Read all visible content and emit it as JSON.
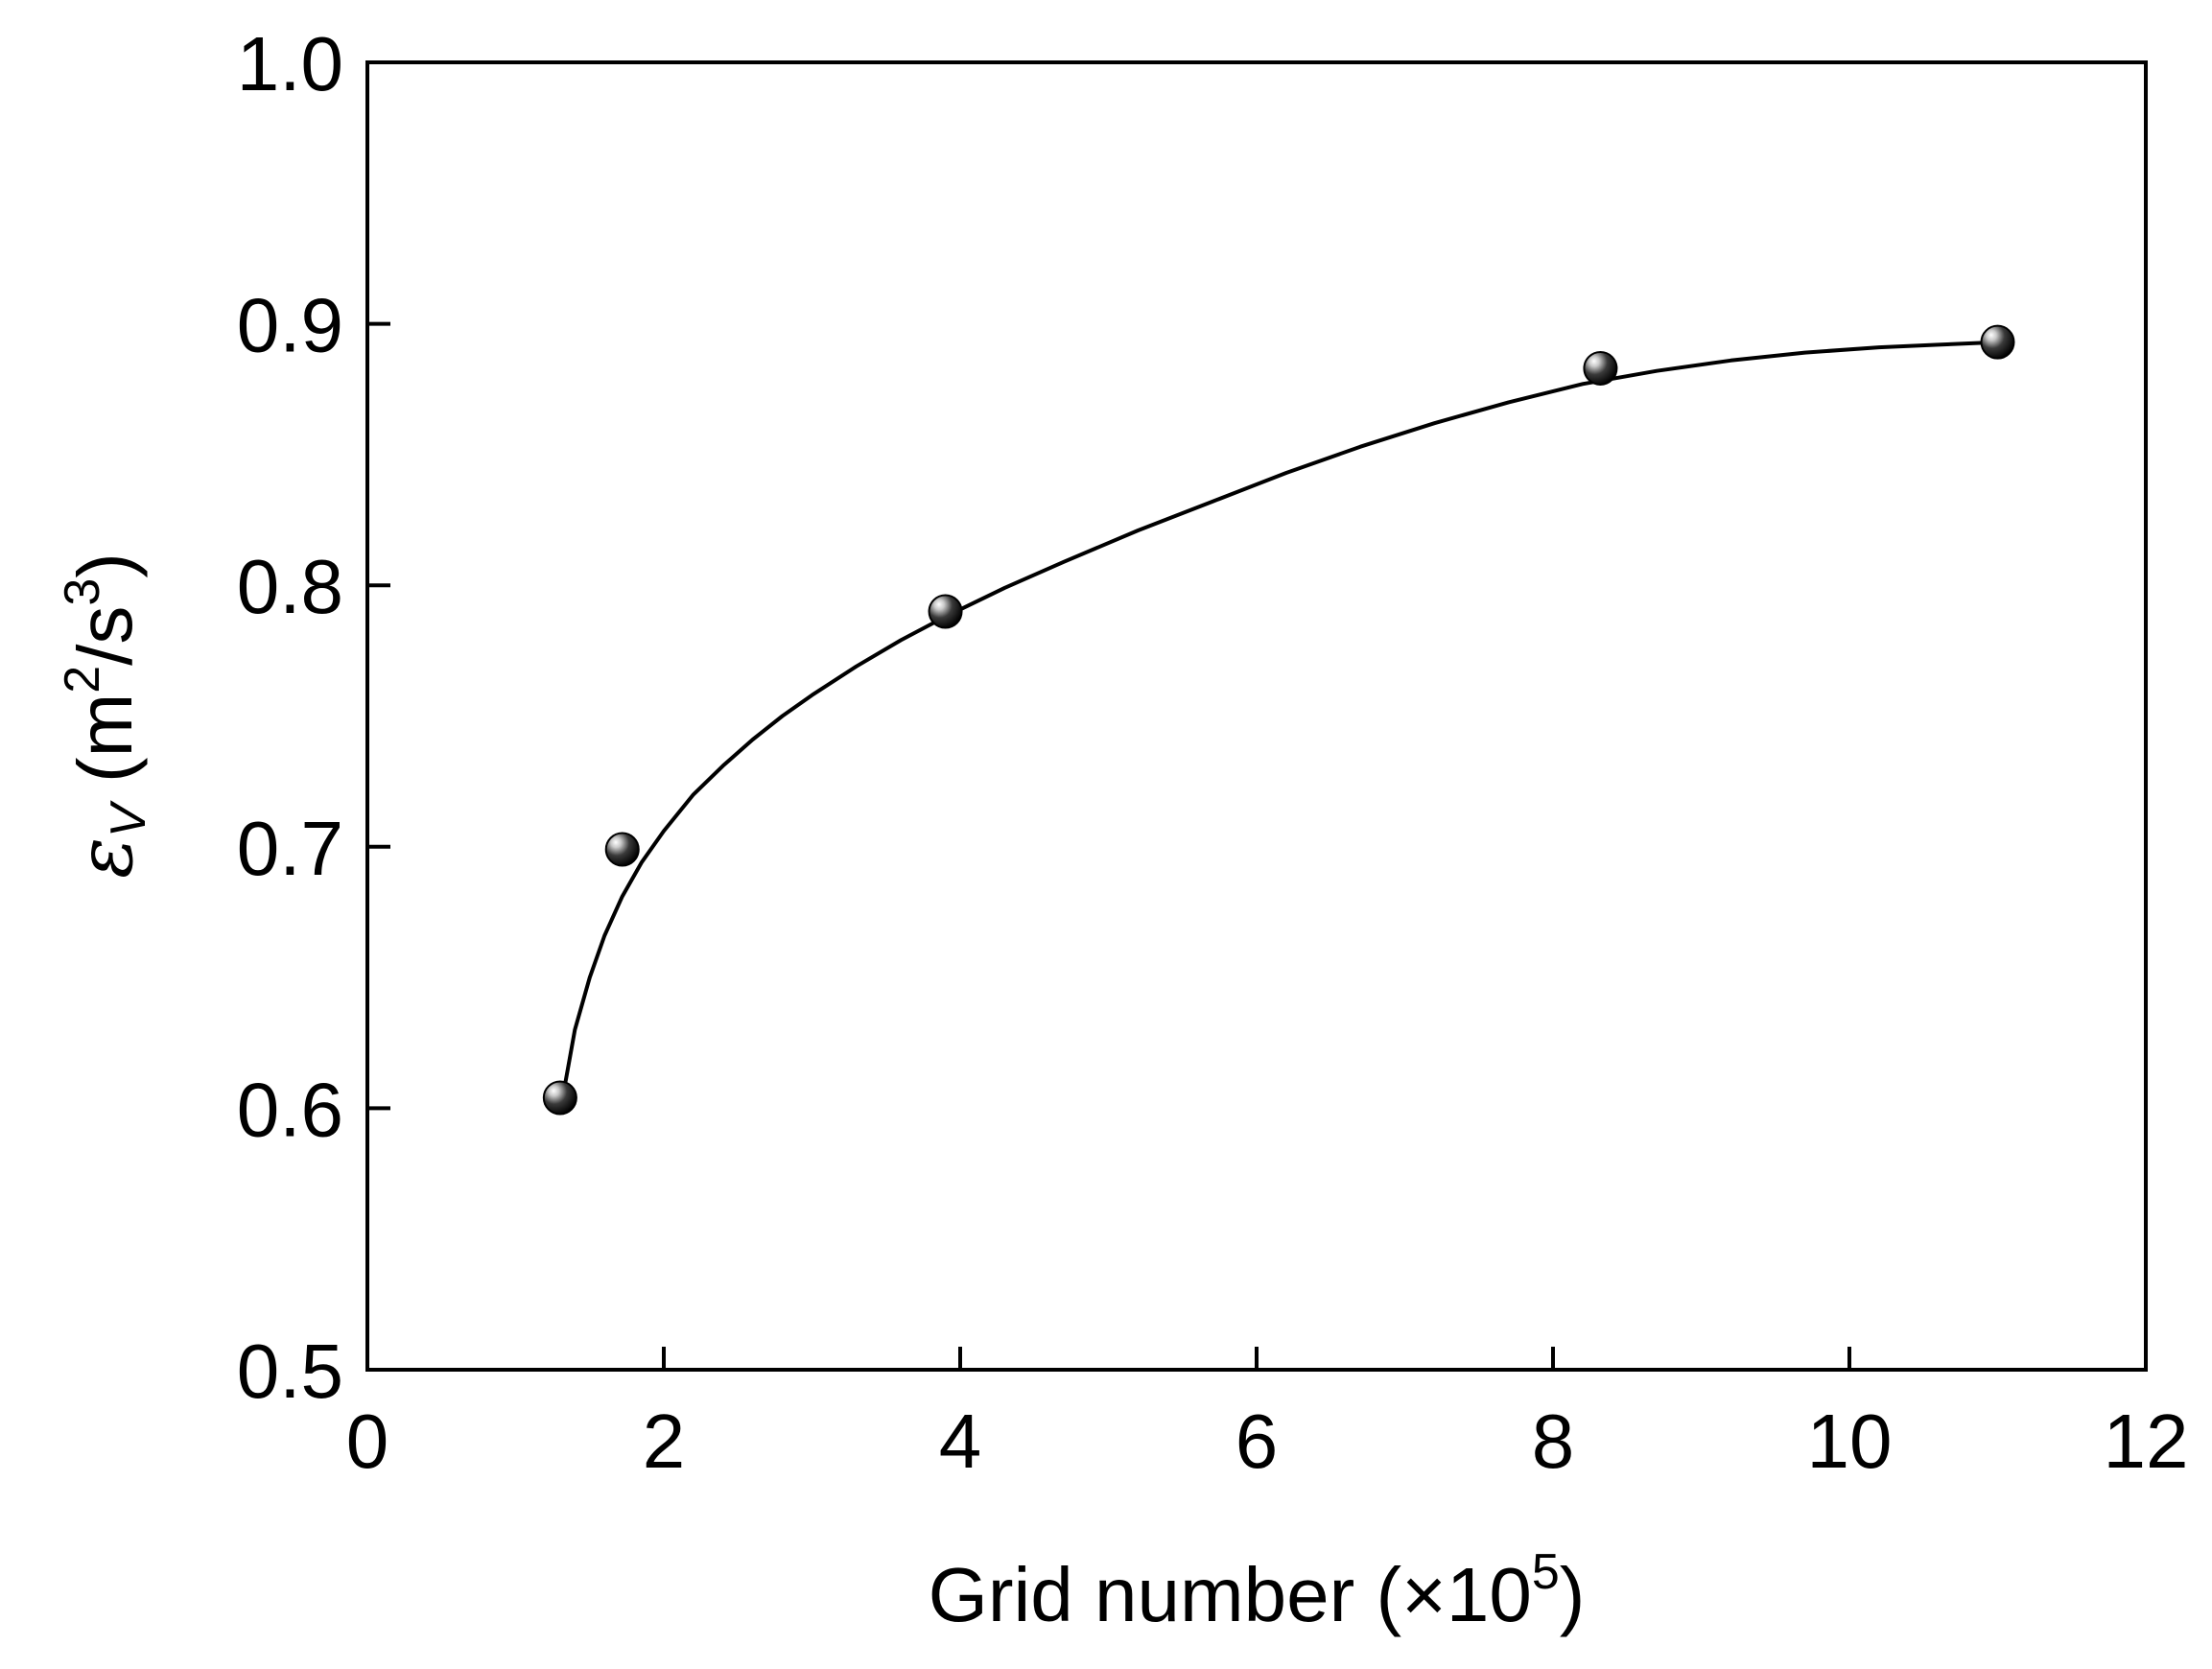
{
  "chart_data": {
    "type": "scatter",
    "title": "",
    "xlabel": {
      "main": "Grid number (×10",
      "sup": "5",
      "close": ")"
    },
    "ylabel": {
      "symbol": "ε",
      "subscript": "V",
      "unit_open": " (m",
      "sup1": "2",
      "unit_mid": "/s",
      "sup2": "3",
      "unit_close": ")"
    },
    "xlim": [
      0,
      12
    ],
    "ylim": [
      0.5,
      1.0
    ],
    "x_ticks": [
      0,
      2,
      4,
      6,
      8,
      10,
      12
    ],
    "x_tick_labels": [
      "0",
      "2",
      "4",
      "6",
      "8",
      "10",
      "12"
    ],
    "y_ticks": [
      0.5,
      0.6,
      0.7,
      0.8,
      0.9,
      1.0
    ],
    "y_tick_labels": [
      "0.5",
      "0.6",
      "0.7",
      "0.8",
      "0.9",
      "1.0"
    ],
    "grid": false,
    "series": [
      {
        "x": [
          1.3,
          1.72,
          3.9,
          8.32,
          11.0
        ],
        "y": [
          0.604,
          0.699,
          0.79,
          0.883,
          0.893
        ],
        "marker": "sphere",
        "color": "#000000"
      }
    ],
    "fit_curve": {
      "style": "solid",
      "color": "#000000",
      "x": [
        1.33,
        1.4,
        1.5,
        1.6,
        1.72,
        1.85,
        2.0,
        2.2,
        2.4,
        2.6,
        2.8,
        3.0,
        3.3,
        3.6,
        3.9,
        4.3,
        4.7,
        5.2,
        5.7,
        6.2,
        6.7,
        7.2,
        7.7,
        8.2,
        8.7,
        9.2,
        9.7,
        10.2,
        10.6,
        11.0
      ],
      "y": [
        0.608,
        0.63,
        0.65,
        0.666,
        0.681,
        0.694,
        0.706,
        0.72,
        0.731,
        0.741,
        0.75,
        0.758,
        0.769,
        0.779,
        0.788,
        0.799,
        0.809,
        0.821,
        0.832,
        0.843,
        0.853,
        0.862,
        0.87,
        0.877,
        0.882,
        0.886,
        0.889,
        0.891,
        0.892,
        0.893
      ]
    }
  }
}
